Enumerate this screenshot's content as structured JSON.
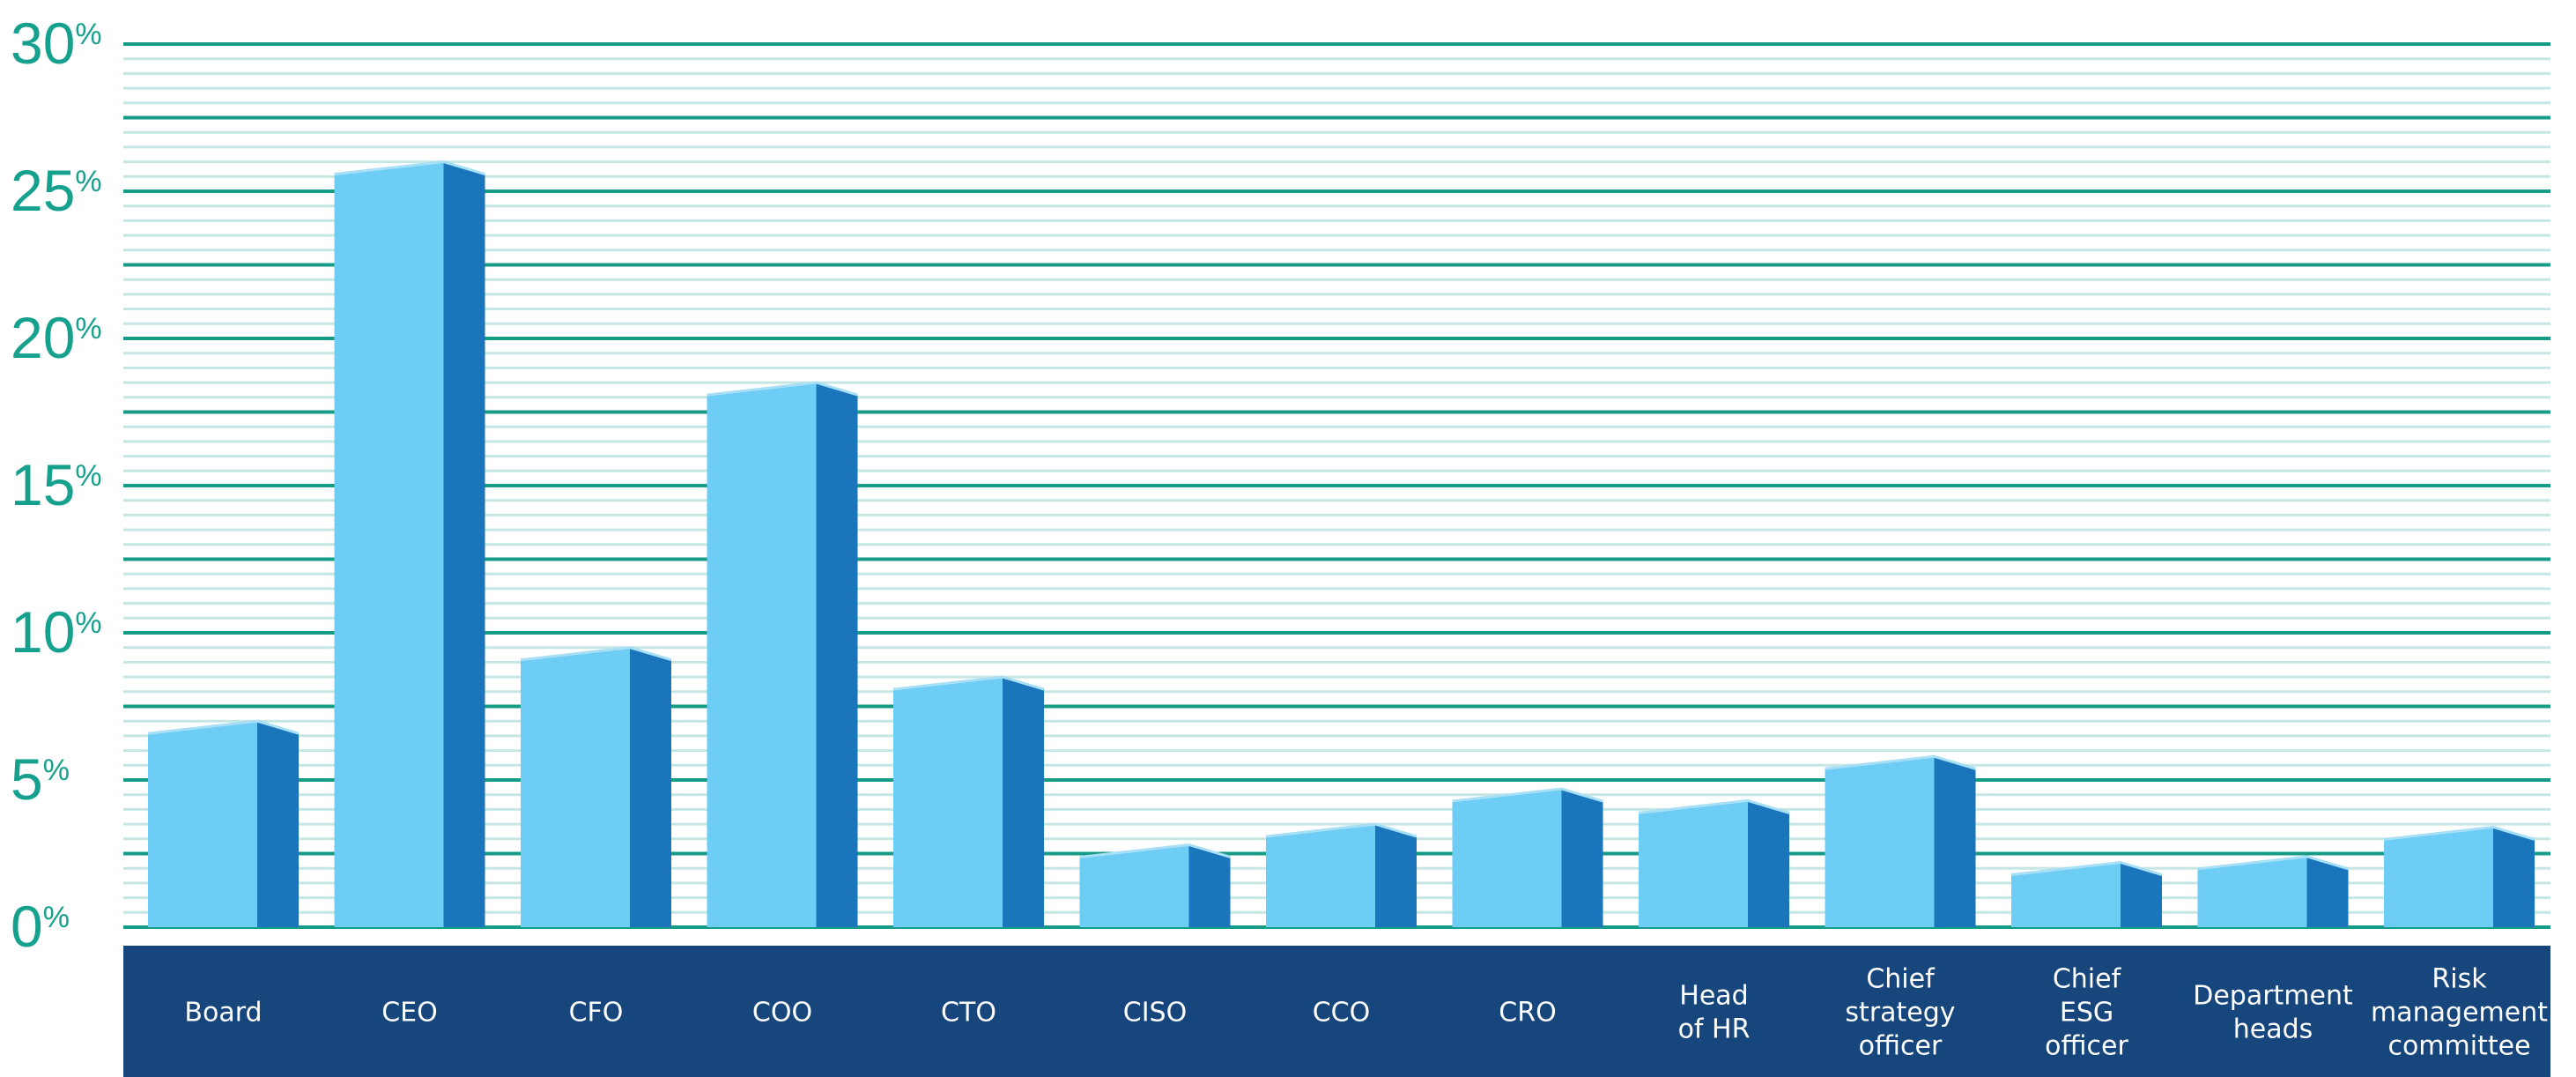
{
  "chart_data": {
    "type": "bar",
    "title": "",
    "xlabel": "",
    "ylabel": "",
    "ylim": [
      0,
      30
    ],
    "ytick_step": 5,
    "minor_grid_step": 0.5,
    "grid": true,
    "yticks": [
      {
        "value": 0,
        "num": "0",
        "suffix": "%"
      },
      {
        "value": 5,
        "num": "5",
        "suffix": "%"
      },
      {
        "value": 10,
        "num": "10",
        "suffix": "%"
      },
      {
        "value": 15,
        "num": "15",
        "suffix": "%"
      },
      {
        "value": 20,
        "num": "20",
        "suffix": "%"
      },
      {
        "value": 25,
        "num": "25",
        "suffix": "%"
      },
      {
        "value": 30,
        "num": "30",
        "suffix": "%"
      }
    ],
    "categories": [
      [
        "Board"
      ],
      [
        "CEO"
      ],
      [
        "CFO"
      ],
      [
        "COO"
      ],
      [
        "CTO"
      ],
      [
        "CISO"
      ],
      [
        "CCO"
      ],
      [
        "CRO"
      ],
      [
        "Head",
        "of HR"
      ],
      [
        "Chief",
        "strategy",
        "officer"
      ],
      [
        "Chief",
        "ESG",
        "officer"
      ],
      [
        "Department",
        "heads"
      ],
      [
        "Risk",
        "management",
        "committee"
      ]
    ],
    "values": [
      7,
      26,
      9.5,
      18.5,
      8.5,
      2.8,
      3.5,
      4.7,
      4.3,
      5.8,
      2.2,
      2.4,
      3.4
    ],
    "colors": {
      "bar_front": "#6dcdf5",
      "bar_side": "#1b75bb",
      "bar_top": "#a7dff7",
      "axis_text": "#16a08e",
      "major_grid": "#169b86",
      "minor_grid": "#c6e6e4",
      "label_band": "#17467d",
      "label_text": "#ffffff"
    }
  }
}
